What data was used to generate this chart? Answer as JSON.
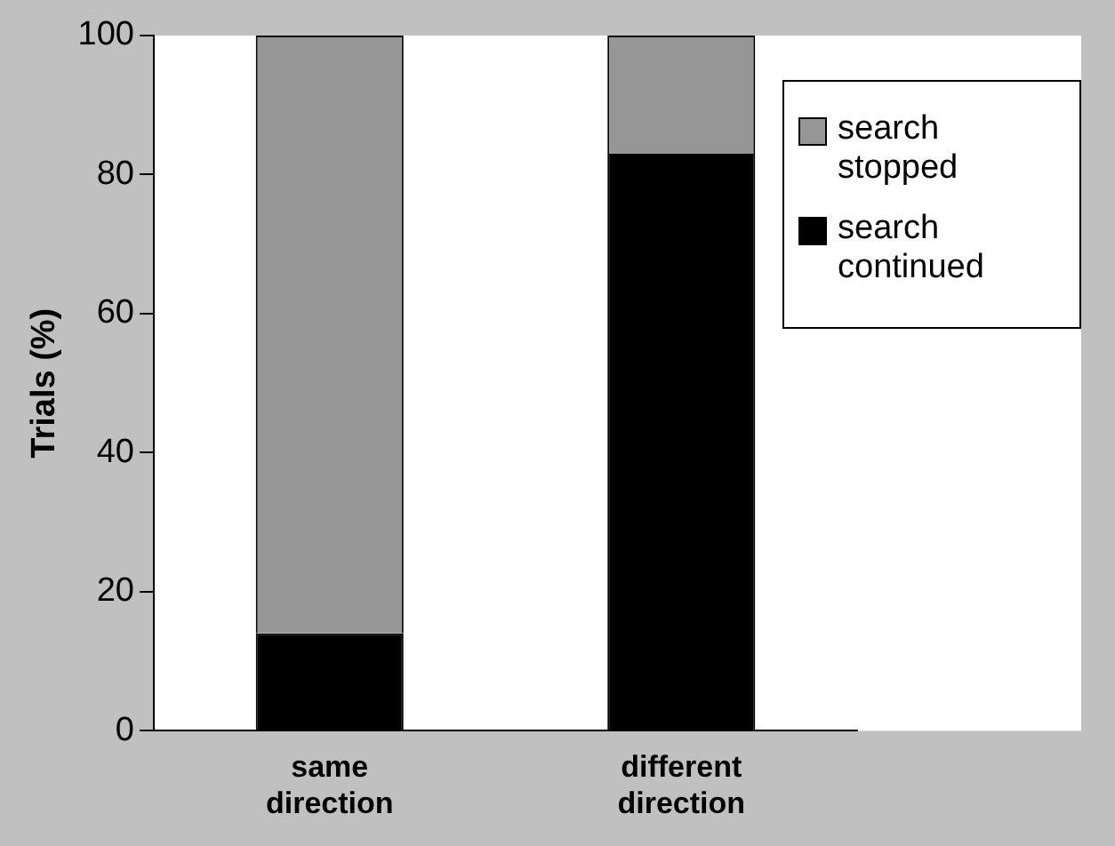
{
  "chart_data": {
    "type": "bar",
    "stacked": true,
    "ylabel": "Trials (%)",
    "categories": [
      "same direction",
      "different direction"
    ],
    "series": [
      {
        "name": "search continued",
        "color": "#000000",
        "values": [
          14,
          83
        ]
      },
      {
        "name": "search stopped",
        "color": "#969696",
        "values": [
          86,
          17
        ]
      }
    ],
    "ylim": [
      0,
      100
    ],
    "yticks": [
      0,
      20,
      40,
      60,
      80,
      100
    ],
    "grid": false,
    "legend": "top right"
  }
}
